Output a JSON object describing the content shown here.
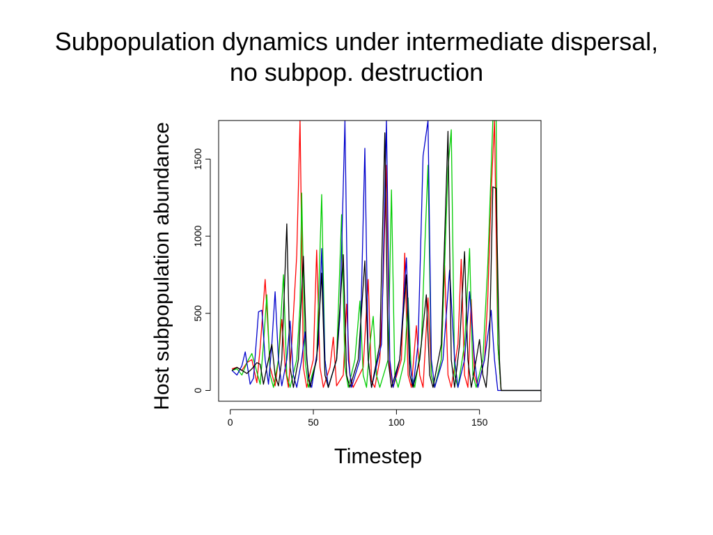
{
  "slide": {
    "title_line1": "Subpopulation dynamics under intermediate dispersal,",
    "title_line2": "no subpop. destruction"
  },
  "chart_data": {
    "type": "line",
    "title": "Subpopulation dynamics under intermediate dispersal, no subpop. destruction",
    "xlabel": "Timestep",
    "ylabel": "Host subpopulation abundance",
    "xlim": [
      -7,
      187
    ],
    "ylim": [
      -70,
      1750
    ],
    "xticks": [
      0,
      50,
      100,
      150
    ],
    "yticks": [
      0,
      500,
      1000,
      1500
    ],
    "grid": false,
    "legend": "none",
    "series": [
      {
        "color": "#ff0000",
        "points": [
          [
            1,
            140
          ],
          [
            4,
            150
          ],
          [
            7,
            130
          ],
          [
            10,
            180
          ],
          [
            13,
            200
          ],
          [
            16,
            50
          ],
          [
            18,
            280
          ],
          [
            21,
            720
          ],
          [
            24,
            150
          ],
          [
            27,
            30
          ],
          [
            29,
            200
          ],
          [
            31,
            460
          ],
          [
            33,
            150
          ],
          [
            35,
            20
          ],
          [
            37,
            300
          ],
          [
            40,
            880
          ],
          [
            42,
            1750
          ],
          [
            44,
            150
          ],
          [
            46,
            20
          ],
          [
            50,
            200
          ],
          [
            52,
            910
          ],
          [
            54,
            150
          ],
          [
            56,
            20
          ],
          [
            60,
            150
          ],
          [
            62,
            345
          ],
          [
            64,
            30
          ],
          [
            68,
            100
          ],
          [
            70,
            560
          ],
          [
            72,
            100
          ],
          [
            74,
            20
          ],
          [
            80,
            150
          ],
          [
            83,
            720
          ],
          [
            85,
            60
          ],
          [
            87,
            20
          ],
          [
            90,
            200
          ],
          [
            92,
            700
          ],
          [
            94,
            1460
          ],
          [
            96,
            150
          ],
          [
            98,
            20
          ],
          [
            103,
            200
          ],
          [
            105,
            890
          ],
          [
            107,
            100
          ],
          [
            109,
            20
          ],
          [
            112,
            420
          ],
          [
            114,
            100
          ],
          [
            116,
            20
          ],
          [
            119,
            600
          ],
          [
            121,
            100
          ],
          [
            123,
            20
          ],
          [
            127,
            200
          ],
          [
            129,
            810
          ],
          [
            131,
            100
          ],
          [
            133,
            20
          ],
          [
            137,
            300
          ],
          [
            139,
            850
          ],
          [
            141,
            100
          ],
          [
            143,
            20
          ],
          [
            145,
            590
          ],
          [
            147,
            100
          ],
          [
            149,
            20
          ],
          [
            153,
            200
          ],
          [
            155,
            610
          ],
          [
            157,
            1280
          ],
          [
            159,
            1750
          ],
          [
            161,
            300
          ],
          [
            163,
            0
          ],
          [
            165,
            0
          ],
          [
            187,
            0
          ]
        ]
      },
      {
        "color": "#00cc00",
        "points": [
          [
            1,
            130
          ],
          [
            4,
            140
          ],
          [
            7,
            100
          ],
          [
            10,
            180
          ],
          [
            13,
            240
          ],
          [
            16,
            120
          ],
          [
            18,
            40
          ],
          [
            20,
            300
          ],
          [
            22,
            620
          ],
          [
            24,
            100
          ],
          [
            26,
            20
          ],
          [
            29,
            200
          ],
          [
            32,
            750
          ],
          [
            34,
            100
          ],
          [
            36,
            20
          ],
          [
            40,
            200
          ],
          [
            42,
            550
          ],
          [
            43,
            1280
          ],
          [
            45,
            200
          ],
          [
            47,
            20
          ],
          [
            52,
            200
          ],
          [
            55,
            1270
          ],
          [
            57,
            200
          ],
          [
            59,
            20
          ],
          [
            64,
            200
          ],
          [
            67,
            1140
          ],
          [
            69,
            150
          ],
          [
            71,
            20
          ],
          [
            75,
            200
          ],
          [
            78,
            580
          ],
          [
            80,
            100
          ],
          [
            82,
            20
          ],
          [
            84,
            300
          ],
          [
            86,
            480
          ],
          [
            88,
            100
          ],
          [
            90,
            20
          ],
          [
            95,
            200
          ],
          [
            97,
            1300
          ],
          [
            99,
            100
          ],
          [
            101,
            20
          ],
          [
            105,
            200
          ],
          [
            107,
            600
          ],
          [
            109,
            100
          ],
          [
            111,
            20
          ],
          [
            115,
            300
          ],
          [
            117,
            910
          ],
          [
            119,
            1460
          ],
          [
            121,
            100
          ],
          [
            123,
            20
          ],
          [
            127,
            200
          ],
          [
            131,
            1440
          ],
          [
            133,
            1690
          ],
          [
            135,
            100
          ],
          [
            137,
            20
          ],
          [
            141,
            300
          ],
          [
            144,
            920
          ],
          [
            146,
            100
          ],
          [
            148,
            20
          ],
          [
            152,
            200
          ],
          [
            155,
            820
          ],
          [
            158,
            1750
          ],
          [
            160,
            1750
          ],
          [
            161,
            300
          ],
          [
            163,
            0
          ],
          [
            187,
            0
          ]
        ]
      },
      {
        "color": "#0000cc",
        "points": [
          [
            1,
            130
          ],
          [
            4,
            100
          ],
          [
            7,
            160
          ],
          [
            9,
            250
          ],
          [
            12,
            40
          ],
          [
            14,
            80
          ],
          [
            17,
            510
          ],
          [
            19,
            520
          ],
          [
            21,
            200
          ],
          [
            23,
            40
          ],
          [
            25,
            300
          ],
          [
            27,
            640
          ],
          [
            29,
            200
          ],
          [
            31,
            30
          ],
          [
            34,
            200
          ],
          [
            36,
            450
          ],
          [
            38,
            100
          ],
          [
            40,
            20
          ],
          [
            43,
            200
          ],
          [
            45,
            380
          ],
          [
            47,
            80
          ],
          [
            49,
            20
          ],
          [
            53,
            300
          ],
          [
            55,
            920
          ],
          [
            57,
            200
          ],
          [
            59,
            20
          ],
          [
            64,
            200
          ],
          [
            66,
            480
          ],
          [
            69,
            1750
          ],
          [
            71,
            200
          ],
          [
            73,
            20
          ],
          [
            78,
            200
          ],
          [
            81,
            1570
          ],
          [
            83,
            200
          ],
          [
            85,
            20
          ],
          [
            91,
            300
          ],
          [
            94,
            1750
          ],
          [
            96,
            200
          ],
          [
            98,
            20
          ],
          [
            102,
            200
          ],
          [
            106,
            860
          ],
          [
            108,
            200
          ],
          [
            110,
            20
          ],
          [
            113,
            300
          ],
          [
            116,
            1520
          ],
          [
            119,
            1750
          ],
          [
            121,
            200
          ],
          [
            123,
            20
          ],
          [
            128,
            200
          ],
          [
            132,
            780
          ],
          [
            135,
            200
          ],
          [
            137,
            20
          ],
          [
            141,
            200
          ],
          [
            144,
            640
          ],
          [
            147,
            200
          ],
          [
            149,
            20
          ],
          [
            153,
            200
          ],
          [
            157,
            520
          ],
          [
            159,
            200
          ],
          [
            161,
            0
          ],
          [
            187,
            0
          ]
        ]
      },
      {
        "color": "#000000",
        "points": [
          [
            1,
            130
          ],
          [
            4,
            150
          ],
          [
            7,
            130
          ],
          [
            10,
            110
          ],
          [
            13,
            140
          ],
          [
            16,
            180
          ],
          [
            18,
            170
          ],
          [
            20,
            40
          ],
          [
            22,
            150
          ],
          [
            25,
            300
          ],
          [
            27,
            100
          ],
          [
            29,
            30
          ],
          [
            31,
            200
          ],
          [
            34,
            1080
          ],
          [
            36,
            150
          ],
          [
            38,
            20
          ],
          [
            41,
            200
          ],
          [
            44,
            870
          ],
          [
            46,
            200
          ],
          [
            48,
            20
          ],
          [
            52,
            200
          ],
          [
            55,
            760
          ],
          [
            57,
            100
          ],
          [
            59,
            20
          ],
          [
            64,
            200
          ],
          [
            68,
            880
          ],
          [
            70,
            100
          ],
          [
            72,
            20
          ],
          [
            77,
            200
          ],
          [
            81,
            840
          ],
          [
            83,
            200
          ],
          [
            85,
            20
          ],
          [
            90,
            300
          ],
          [
            93,
            1670
          ],
          [
            95,
            200
          ],
          [
            97,
            20
          ],
          [
            102,
            200
          ],
          [
            106,
            750
          ],
          [
            108,
            100
          ],
          [
            110,
            20
          ],
          [
            114,
            200
          ],
          [
            118,
            620
          ],
          [
            120,
            100
          ],
          [
            122,
            20
          ],
          [
            127,
            300
          ],
          [
            131,
            1680
          ],
          [
            133,
            200
          ],
          [
            135,
            20
          ],
          [
            138,
            300
          ],
          [
            141,
            900
          ],
          [
            143,
            200
          ],
          [
            145,
            20
          ],
          [
            148,
            200
          ],
          [
            150,
            330
          ],
          [
            152,
            100
          ],
          [
            154,
            20
          ],
          [
            156,
            300
          ],
          [
            158,
            1320
          ],
          [
            160,
            1310
          ],
          [
            162,
            200
          ],
          [
            163,
            0
          ],
          [
            187,
            0
          ]
        ]
      }
    ]
  }
}
